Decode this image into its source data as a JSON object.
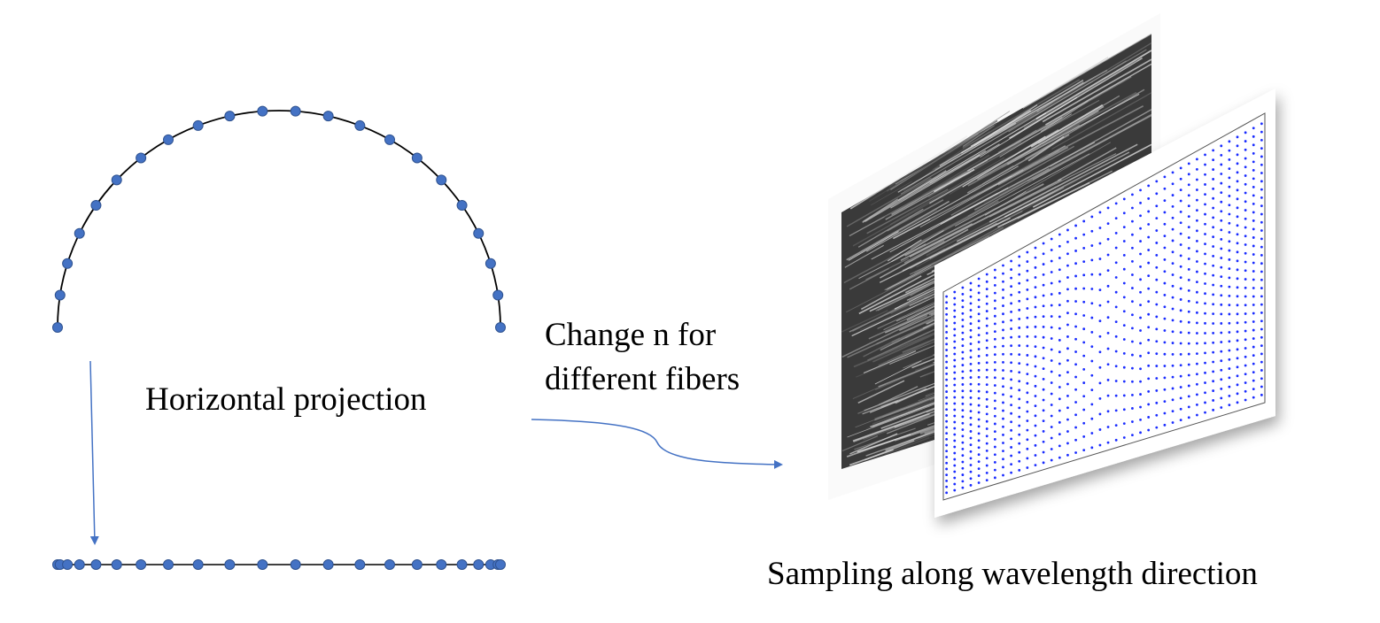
{
  "labels": {
    "projection": "Horizontal projection",
    "change_n": [
      "Change n for",
      "different fibers"
    ],
    "sampling": "Sampling along wavelength direction"
  }
}
